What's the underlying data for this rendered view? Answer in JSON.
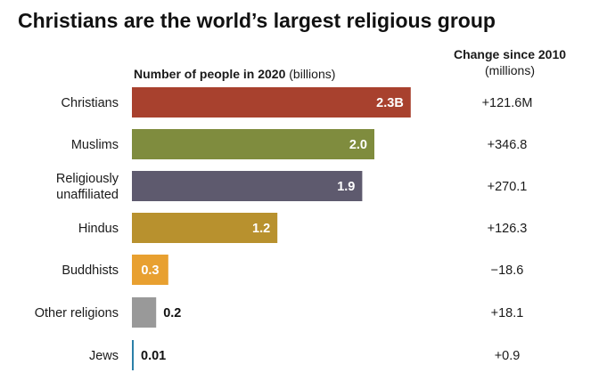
{
  "title": "Christians are the world’s largest religious group",
  "header": {
    "left_bold": "Number of people in 2020",
    "left_unit": "(billions)",
    "right_line1": "Change since 2010",
    "right_line2": "(millions)"
  },
  "chart_data": {
    "type": "bar",
    "orientation": "horizontal",
    "title": "Christians are the world’s largest religious group",
    "xlabel": "Number of people in 2020 (billions)",
    "categories": [
      [
        "Christians"
      ],
      [
        "Muslims"
      ],
      [
        "Religiously",
        "unaffiliated"
      ],
      [
        "Hindus"
      ],
      [
        "Buddhists"
      ],
      [
        "Other religions"
      ],
      [
        "Jews"
      ]
    ],
    "values": [
      2.3,
      2.0,
      1.9,
      1.2,
      0.3,
      0.2,
      0.01
    ],
    "value_labels": [
      "2.3B",
      "2.0",
      "1.9",
      "1.2",
      "0.3",
      "0.2",
      "0.01"
    ],
    "colors": [
      "#a8412e",
      "#7f8c3e",
      "#5e5a6e",
      "#b8912e",
      "#e8a030",
      "#999999",
      "#2b7fa8"
    ],
    "change_since_2010_millions": [
      "+121.6M",
      "+346.8",
      "+270.1",
      "+126.3",
      "−18.6",
      "+18.1",
      "+0.9"
    ],
    "grid": false,
    "legend": "none"
  }
}
